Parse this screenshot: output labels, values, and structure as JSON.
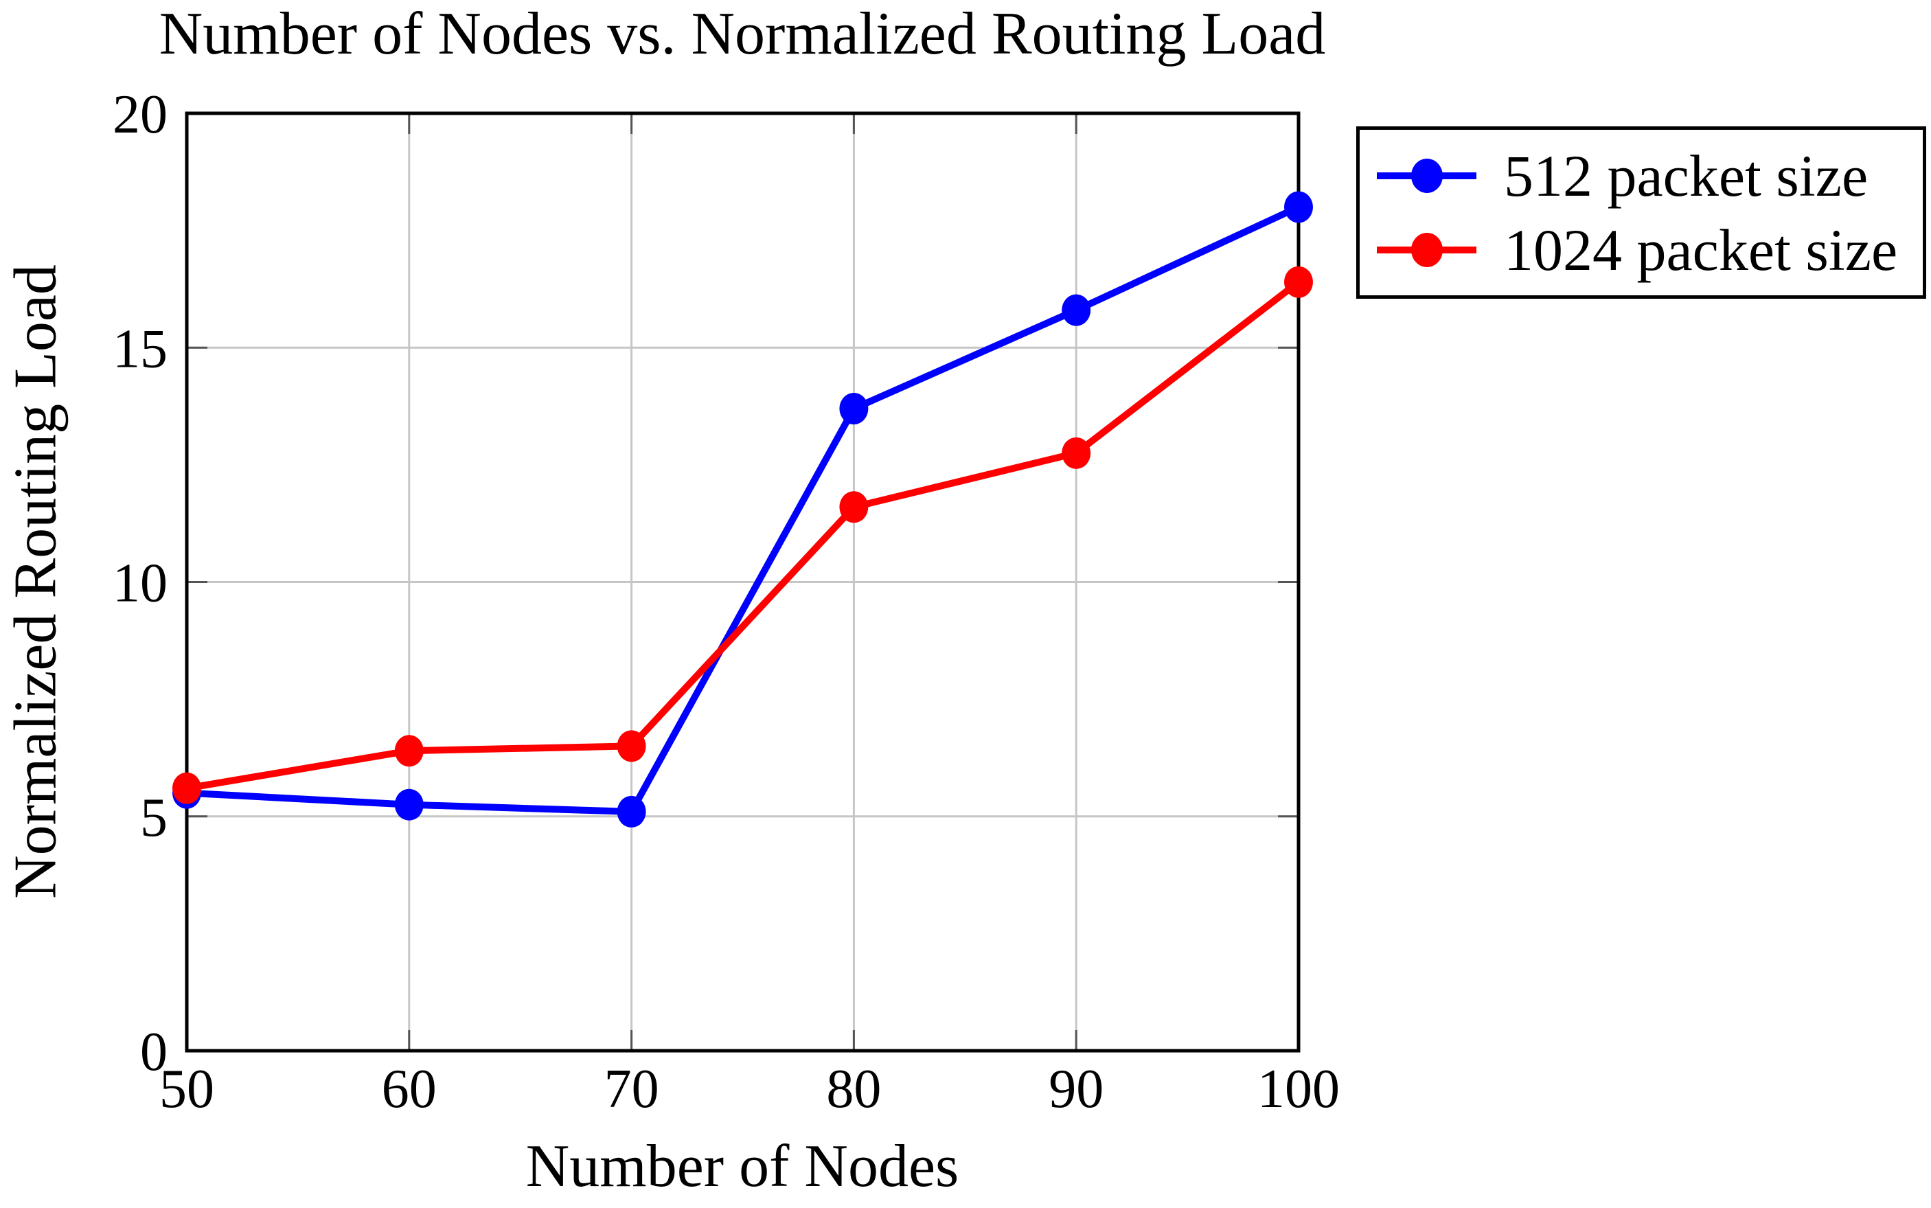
{
  "title": "Number of Nodes vs. Normalized Routing Load",
  "chart_data": {
    "type": "line",
    "x": [
      50,
      60,
      70,
      80,
      90,
      100
    ],
    "series": [
      {
        "name": "512 packet size",
        "color": "#0000ff",
        "values": [
          5.5,
          5.25,
          5.1,
          13.7,
          15.8,
          18.0
        ]
      },
      {
        "name": "1024 packet size",
        "color": "#ff0000",
        "values": [
          5.6,
          6.4,
          6.5,
          11.6,
          12.75,
          16.4
        ]
      }
    ],
    "xlabel": "Number of Nodes",
    "ylabel": "Normalized Routing Load",
    "xlim": [
      50,
      100
    ],
    "ylim": [
      0,
      20
    ],
    "x_ticks": [
      50,
      60,
      70,
      80,
      90,
      100
    ],
    "y_ticks": [
      0,
      5,
      10,
      15,
      20
    ],
    "grid": true,
    "legend_position": "outside-top-right"
  },
  "legend": {
    "entries": [
      {
        "label": "512 packet size",
        "color": "#0000ff"
      },
      {
        "label": "1024 packet size",
        "color": "#ff0000"
      }
    ]
  },
  "colors": {
    "background": "#ffffff",
    "frame": "#000000",
    "grid": "#c6c6c6",
    "tick": "#555555",
    "text": "#000000"
  }
}
